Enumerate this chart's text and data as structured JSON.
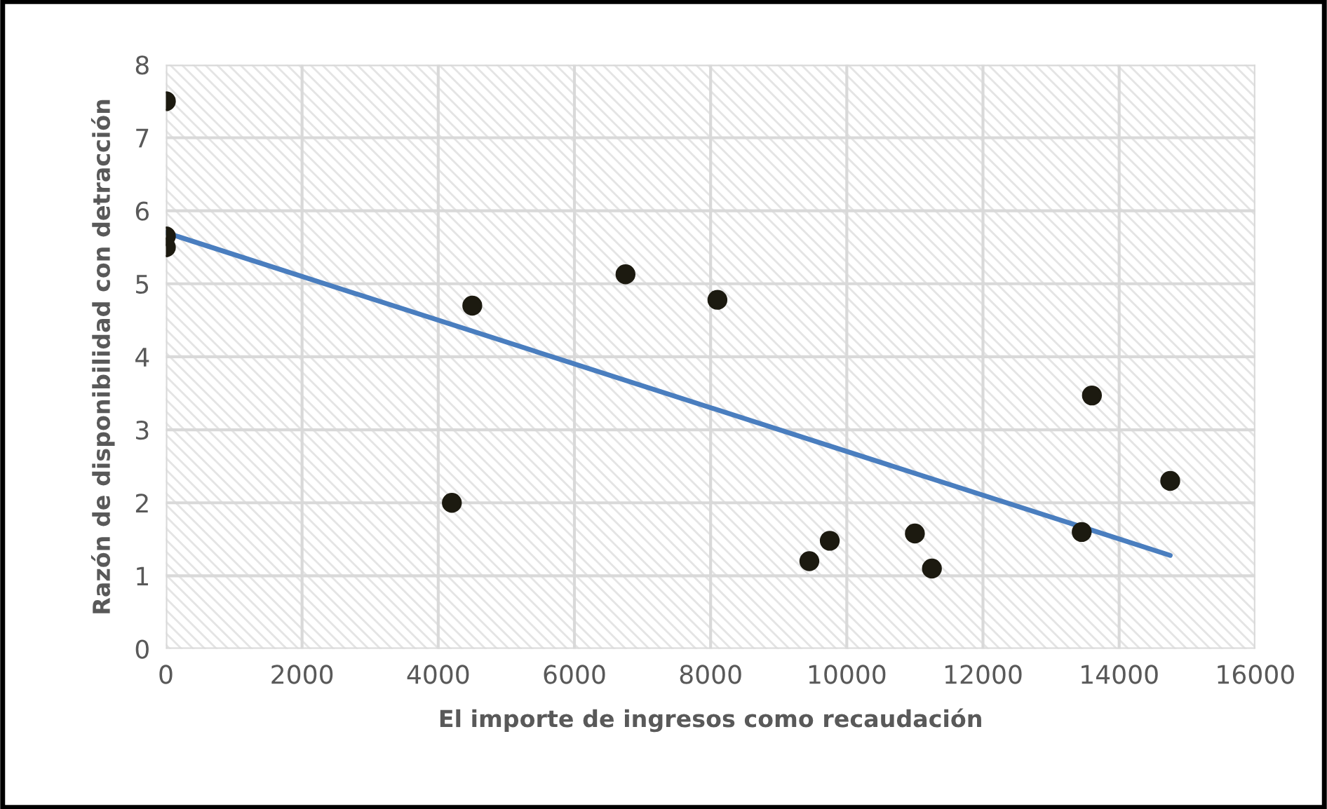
{
  "chart_data": {
    "type": "scatter",
    "xlabel": "El importe de ingresos como recaudación",
    "ylabel": "Razón de disponibilidad con detracción",
    "xlim": [
      0,
      16000
    ],
    "xticks": [
      0,
      2000,
      4000,
      6000,
      8000,
      10000,
      12000,
      14000,
      16000
    ],
    "ylim": [
      0,
      8
    ],
    "yticks": [
      0,
      1,
      2,
      3,
      4,
      5,
      6,
      7,
      8
    ],
    "grid": true,
    "series": [
      {
        "marker": "circle",
        "color": "#1c1a10",
        "x": [
          0,
          0,
          0,
          4200,
          4500,
          6750,
          8100,
          9450,
          9750,
          11000,
          11250,
          13450,
          13600,
          14750
        ],
        "values": [
          7.5,
          5.65,
          5.5,
          2.0,
          4.7,
          5.13,
          4.78,
          1.2,
          1.48,
          1.58,
          1.1,
          1.6,
          3.47,
          2.3
        ]
      },
      {
        "type": "line",
        "marker": "none",
        "color": "#4a7ebf",
        "x": [
          0,
          14750
        ],
        "values": [
          5.7,
          1.28
        ]
      }
    ]
  }
}
